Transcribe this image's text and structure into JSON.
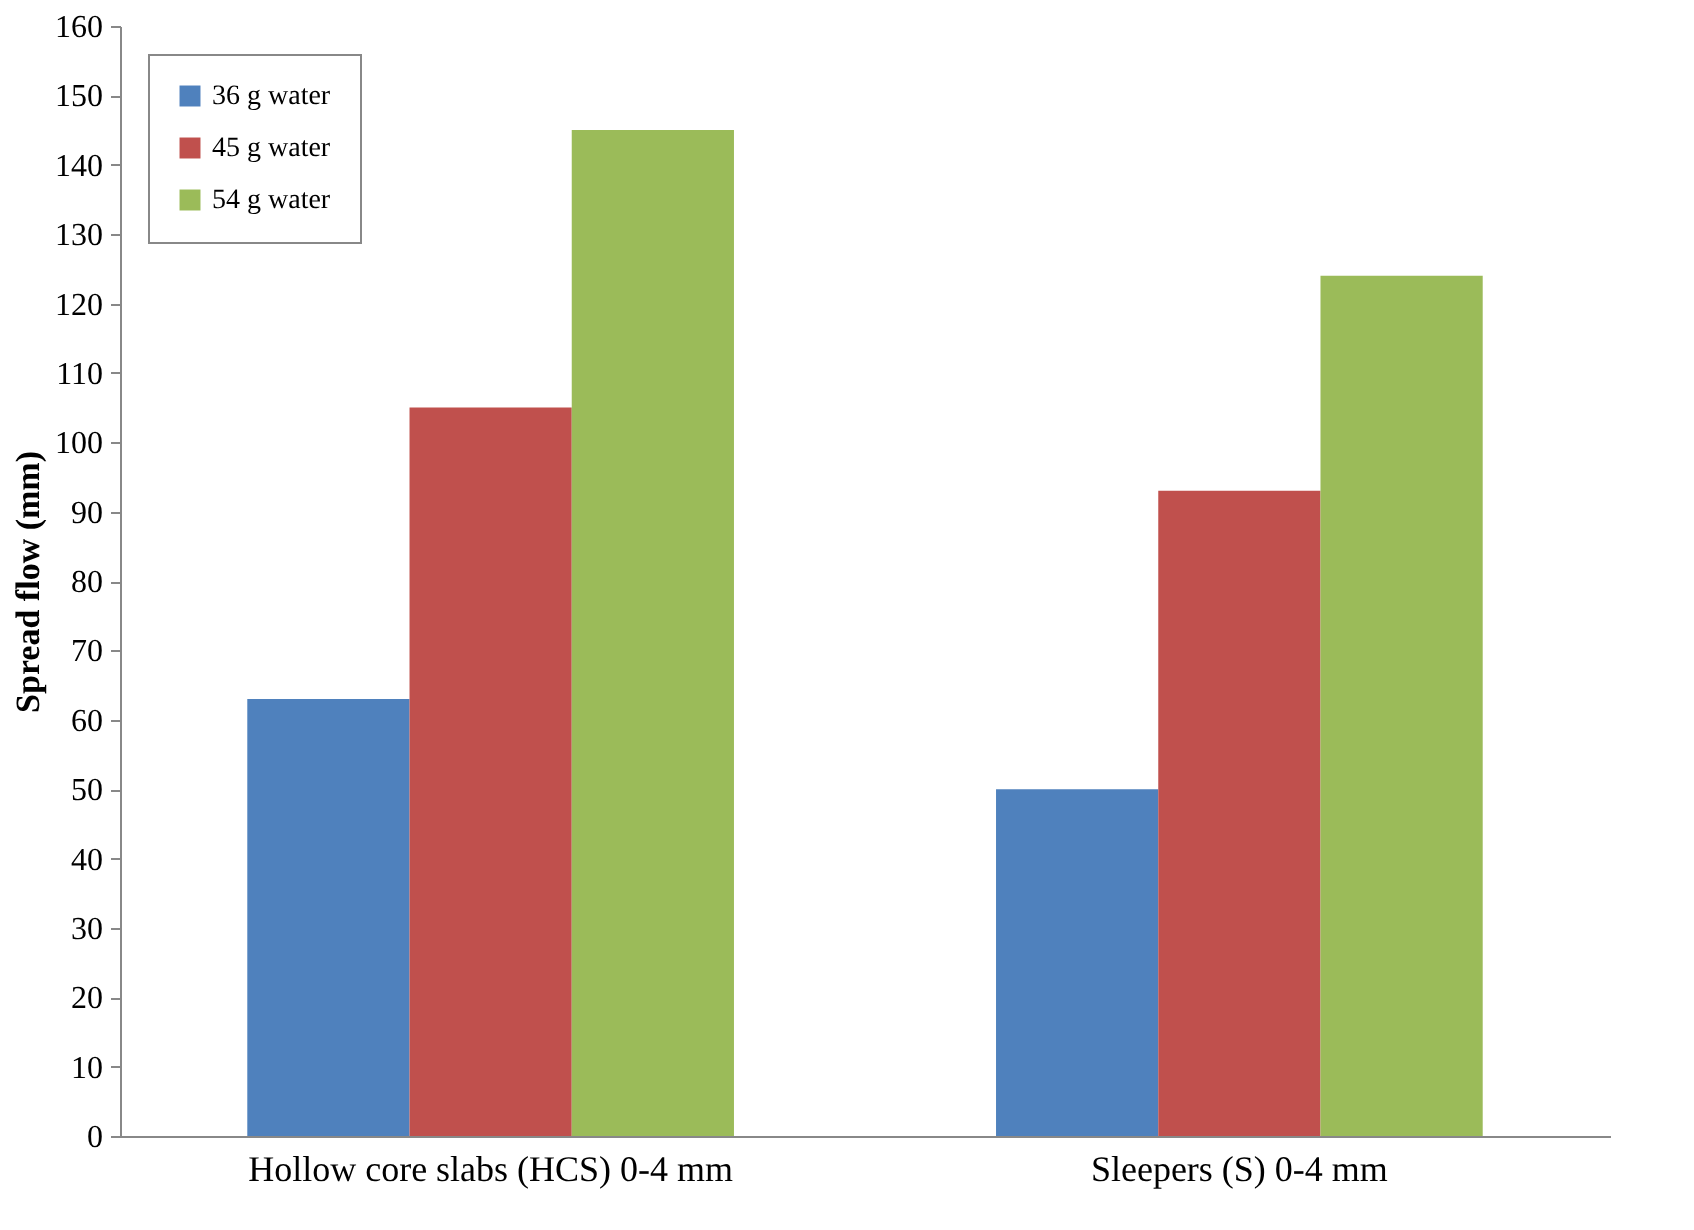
{
  "chart_data": {
    "type": "bar",
    "ylabel": "Spread flow (mm)",
    "categories": [
      "Hollow core slabs (HCS) 0-4 mm",
      "Sleepers (S) 0-4 mm"
    ],
    "series": [
      {
        "name": "36 g water",
        "color": "#4f81bd",
        "values": [
          63,
          50
        ]
      },
      {
        "name": "45 g water",
        "color": "#c0504d",
        "values": [
          105,
          93
        ]
      },
      {
        "name": "54 g water",
        "color": "#9bbb59",
        "values": [
          145,
          124
        ]
      }
    ],
    "ylim": [
      0,
      160
    ],
    "yticks": [
      0,
      10,
      20,
      30,
      40,
      50,
      60,
      70,
      80,
      90,
      100,
      110,
      120,
      130,
      140,
      150,
      160
    ],
    "grid": false,
    "legend": "top left"
  }
}
